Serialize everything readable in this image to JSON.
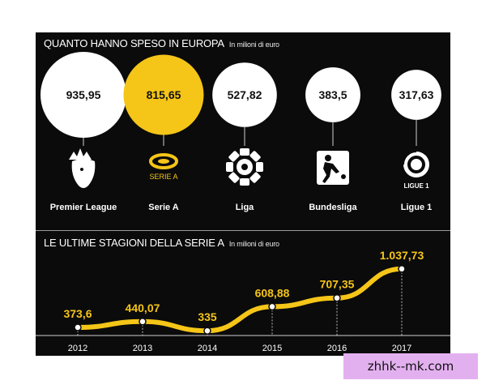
{
  "chart_data": [
    {
      "type": "bubble",
      "title": "QUANTO HANNO SPESO IN EUROPA",
      "unit": "In milioni di euro",
      "categories": [
        "Premier League",
        "Serie A",
        "Liga",
        "Bundesliga",
        "Ligue 1"
      ],
      "value_labels": [
        "935,95",
        "815,65",
        "527,82",
        "383,5",
        "317,63"
      ],
      "values": [
        935.95,
        815.65,
        527.82,
        383.5,
        317.63
      ],
      "colors": [
        "#ffffff",
        "#f5c518",
        "#ffffff",
        "#ffffff",
        "#ffffff"
      ],
      "logos": [
        "premier-league-lion-icon",
        "serie-a-shield-icon",
        "liga-ball-icon",
        "bundesliga-player-icon",
        "ligue-1-ball-icon"
      ],
      "logo_text": {
        "serie_a": "SERIE A",
        "ligue_1": "LIGUE 1"
      }
    },
    {
      "type": "line",
      "title": "LE ULTIME STAGIONI DELLA SERIE A",
      "unit": "In milioni di euro",
      "x": [
        "2012",
        "2013",
        "2014",
        "2015",
        "2016",
        "2017"
      ],
      "y": [
        373.6,
        440.07,
        335,
        608.88,
        707.35,
        1037.73
      ],
      "y_labels": [
        "373,6",
        "440,07",
        "335",
        "608,88",
        "707,35",
        "1.037,73"
      ],
      "line_color": "#f5c518",
      "label_color": "#f5c518"
    }
  ],
  "watermark": "zhhk--mk.com"
}
